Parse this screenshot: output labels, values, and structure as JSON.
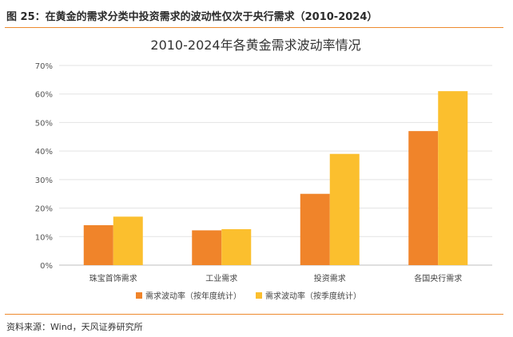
{
  "figure": {
    "title": "图 25：在黄金的需求分类中投资需求的波动性仅次于央行需求（2010-2024）",
    "source": "资料来源：Wind，天风证券研究所"
  },
  "colors": {
    "accent_rule": "#ee8a2e",
    "series_1": "#f0842a",
    "series_2": "#fbbf2e"
  },
  "chart_data": {
    "type": "bar",
    "title": "2010-2024年各黄金需求波动率情况",
    "categories": [
      "珠宝首饰需求",
      "工业需求",
      "投资需求",
      "各国央行需求"
    ],
    "series": [
      {
        "name": "需求波动率（按年度统计）",
        "values": [
          14,
          12.2,
          25,
          47
        ]
      },
      {
        "name": "需求波动率（按季度统计）",
        "values": [
          17,
          12.6,
          39,
          61
        ]
      }
    ],
    "y_ticks": [
      "0%",
      "10%",
      "20%",
      "30%",
      "40%",
      "50%",
      "60%",
      "70%"
    ],
    "ylim": [
      0,
      70
    ],
    "unit": "%",
    "grid": true,
    "legend_position": "bottom"
  }
}
